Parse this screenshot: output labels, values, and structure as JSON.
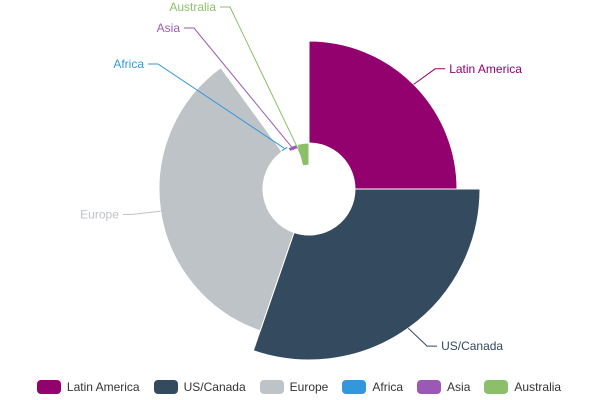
{
  "chart_data": {
    "type": "pie",
    "variant": "polar-area-donut",
    "categories": [
      "Latin America",
      "US/Canada",
      "Europe",
      "Africa",
      "Asia",
      "Australia"
    ],
    "angles_deg": [
      90,
      109,
      125,
      9,
      12,
      15
    ],
    "radial_values": [
      148,
      171,
      150,
      48,
      42,
      24
    ],
    "colors": [
      "#93016f",
      "#344a5f",
      "#bec3c7",
      "#3397dc",
      "#9b59b6",
      "#8cbf6a"
    ],
    "legend_position": "bottom",
    "title": ""
  }
}
